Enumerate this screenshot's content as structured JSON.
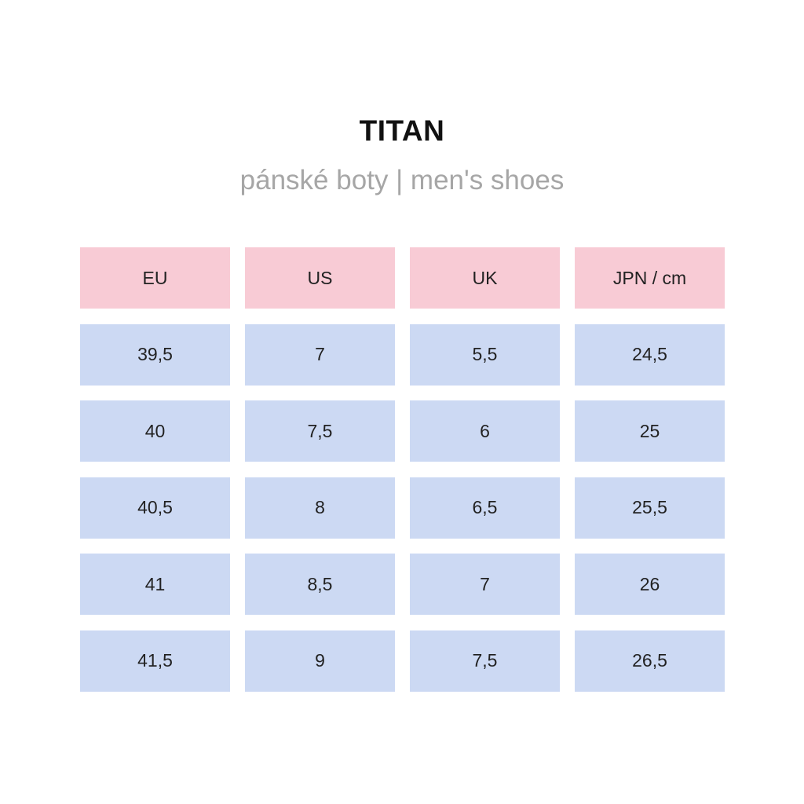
{
  "title": "TITAN",
  "subtitle": "pánské boty | men's shoes",
  "colors": {
    "header_bg": "#f8cbd5",
    "value_bg": "#ccd9f3",
    "subtitle_text": "#a6a6a6"
  },
  "table": {
    "headers": [
      "EU",
      "US",
      "UK",
      "JPN / cm"
    ],
    "rows": [
      [
        "39,5",
        "7",
        "5,5",
        "24,5"
      ],
      [
        "40",
        "7,5",
        "6",
        "25"
      ],
      [
        "40,5",
        "8",
        "6,5",
        "25,5"
      ],
      [
        "41",
        "8,5",
        "7",
        "26"
      ],
      [
        "41,5",
        "9",
        "7,5",
        "26,5"
      ]
    ]
  }
}
